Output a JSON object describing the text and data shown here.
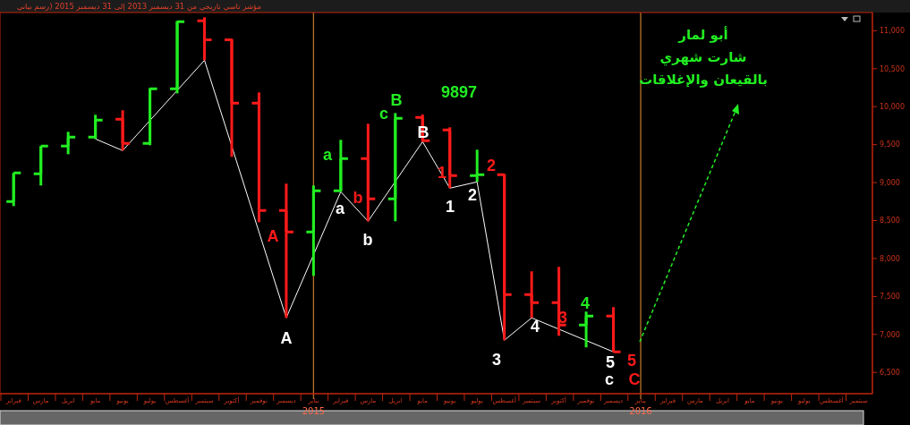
{
  "chart_data": {
    "type": "candlestick",
    "title": "مؤشر تاسي تاريخي   من 31 ديسمبر 2013 إلى 31 ديسمبر 2015 (رسم بياني",
    "categories": [
      "فبراير",
      "مارس",
      "ابريل",
      "مايو",
      "يونيو",
      "يوليو",
      "أغسطس",
      "سبتمبر",
      "أكتوبر",
      "نوفمبر",
      "ديسمبر",
      "يناير\n2015",
      "فبراير",
      "مارس",
      "ابريل",
      "مايو",
      "يونيو",
      "يوليو",
      "أغسطس",
      "سبتمبر",
      "أكتوبر",
      "نوفمبر",
      "ديسمبر",
      "يناير\n2016",
      "فبراير",
      "مارس",
      "ابريل",
      "مايو",
      "يونيو",
      "يوليو",
      "أغسطس",
      "سبتمبر"
    ],
    "series": [
      {
        "type": "line",
        "color": "#ffffff",
        "values": [
          null,
          null,
          null,
          9575,
          9422,
          null,
          null,
          10611,
          null,
          null,
          7219,
          null,
          8880,
          8491,
          null,
          9539,
          8927,
          9009,
          6924,
          7219,
          null,
          null,
          6771,
          null,
          null,
          null,
          null,
          null,
          null,
          null,
          null,
          null
        ]
      },
      {
        "ohlc": [
          [
            8750,
            9127,
            8691,
            9127
          ],
          [
            9115,
            9480,
            8962,
            9480
          ],
          [
            9480,
            9669,
            9374,
            9598
          ],
          [
            9598,
            9893,
            9575,
            9822
          ],
          [
            9834,
            9952,
            9422,
            9516
          ],
          [
            9516,
            10246,
            9492,
            10234
          ],
          [
            10234,
            11130,
            10175,
            11118
          ],
          [
            11130,
            11177,
            10611,
            10882
          ],
          [
            10882,
            10894,
            9339,
            10046
          ],
          [
            10046,
            10187,
            8479,
            8632
          ],
          [
            8632,
            8986,
            7219,
            8349
          ],
          [
            8349,
            8962,
            7772,
            8891
          ],
          [
            8891,
            9563,
            8880,
            9315
          ],
          [
            9315,
            9775,
            8491,
            8785
          ],
          [
            8785,
            9916,
            8491,
            9846
          ],
          [
            9857,
            9897,
            9539,
            9551
          ],
          [
            9692,
            9728,
            8927,
            9092
          ],
          [
            9092,
            9433,
            9009,
            9103
          ],
          [
            9103,
            9115,
            6924,
            7525
          ],
          [
            7525,
            7831,
            7219,
            7419
          ],
          [
            7419,
            7890,
            6983,
            7124
          ],
          [
            7124,
            7301,
            6830,
            7242
          ],
          [
            7242,
            7360,
            6771,
            6771
          ],
          null,
          null,
          null,
          null,
          null,
          null,
          null,
          null,
          null
        ],
        "colors": [
          "#22ee22",
          "#22ee22",
          "#22ee22",
          "#22ee22",
          "#ff1a1a",
          "#22ee22",
          "#22ee22",
          "#ff1a1a",
          "#ff1a1a",
          "#ff1a1a",
          "#ff1a1a",
          "#22ee22",
          "#22ee22",
          "#ff1a1a",
          "#22ee22",
          "#ff1a1a",
          "#ff1a1a",
          "#22ee22",
          "#ff1a1a",
          "#ff1a1a",
          "#ff1a1a",
          "#22ee22",
          "#ff1a1a",
          null,
          null,
          null,
          null,
          null,
          null,
          null,
          null,
          null
        ]
      }
    ],
    "ylim": [
      6220,
      11240
    ],
    "yticks": [
      {
        "value": 6500,
        "label": "6,500"
      },
      {
        "value": 7000,
        "label": "7,000"
      },
      {
        "value": 7500,
        "label": "7,500"
      },
      {
        "value": 8000,
        "label": "8,000"
      },
      {
        "value": 8500,
        "label": "8,500"
      },
      {
        "value": 9000,
        "label": "9,000"
      },
      {
        "value": 9500,
        "label": "9,500"
      },
      {
        "value": 10000,
        "label": "10,000"
      },
      {
        "value": 10500,
        "label": "10,500"
      },
      {
        "value": 11000,
        "label": "11,000"
      }
    ],
    "ref_lines": [
      {
        "axis": "x",
        "value": "يناير\n2015",
        "color": "#b8732a"
      },
      {
        "axis": "x",
        "value": "يناير\n2016",
        "color": "#b8732a"
      }
    ],
    "marker": "none",
    "line_style": "solid",
    "annotations": [
      "A",
      "A",
      "a",
      "a",
      "b",
      "b",
      "c",
      "B",
      "9897",
      "B",
      "1",
      "1",
      "2",
      "2",
      "3",
      "4",
      "3",
      "4",
      "5",
      "c",
      "5",
      "C",
      "أبو لمار",
      "شارت شهري",
      "بالقيعان والإغلاقات"
    ]
  }
}
